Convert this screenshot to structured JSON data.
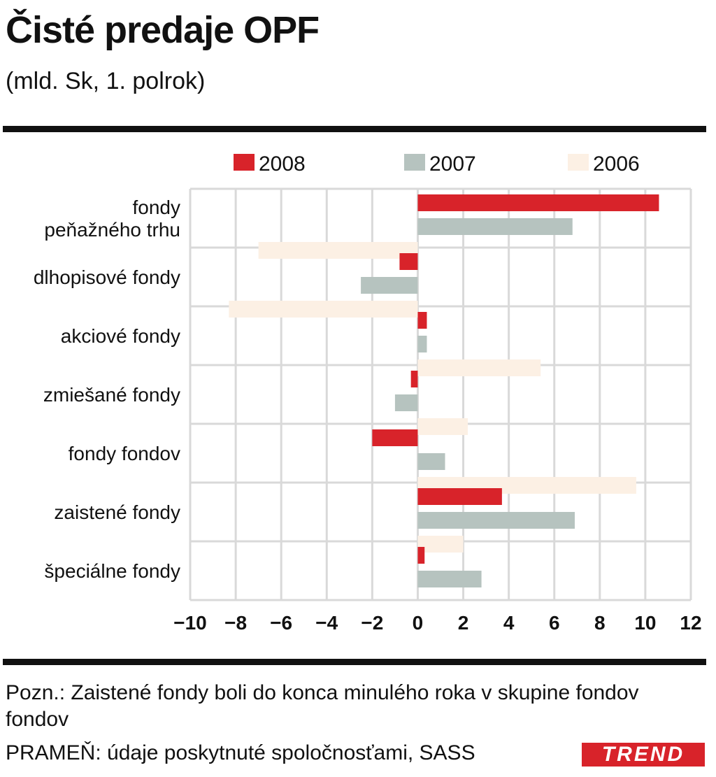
{
  "chart_data": {
    "type": "bar",
    "orientation": "horizontal",
    "title": "Čisté predaje OPF",
    "subtitle": "(mld. Sk, 1. polrok)",
    "categories": [
      [
        "fondy",
        "peňažného trhu"
      ],
      [
        "dlhopisové fondy"
      ],
      [
        "akciové fondy"
      ],
      [
        "zmiešané fondy"
      ],
      [
        "fondy fondov"
      ],
      [
        "zaistené fondy"
      ],
      [
        "špeciálne fondy"
      ]
    ],
    "series": [
      {
        "name": "2008",
        "color": "#d8232a",
        "values": [
          10.6,
          -0.8,
          0.4,
          -0.3,
          -2.0,
          3.7,
          0.3
        ]
      },
      {
        "name": "2007",
        "color": "#b6c3bf",
        "values": [
          6.8,
          -2.5,
          0.4,
          -1.0,
          1.2,
          6.9,
          2.8
        ]
      },
      {
        "name": "2006",
        "color": "#fcf0e4",
        "values": [
          -7.0,
          -8.3,
          5.4,
          2.2,
          9.6,
          2.0,
          0
        ]
      }
    ],
    "xlim": [
      -10,
      12
    ],
    "xticks": [
      -10,
      -8,
      -6,
      -4,
      -2,
      0,
      2,
      4,
      6,
      8,
      10,
      12
    ],
    "xlabel": "",
    "ylabel": "",
    "grid": true,
    "legend": "top"
  },
  "note": "Pozn.: Zaistené fondy boli do konca minulého roka v skupine fondov fondov",
  "source": "PRAMEŇ: údaje poskytnuté spoločnosťami, SASS",
  "logo": "TREND"
}
